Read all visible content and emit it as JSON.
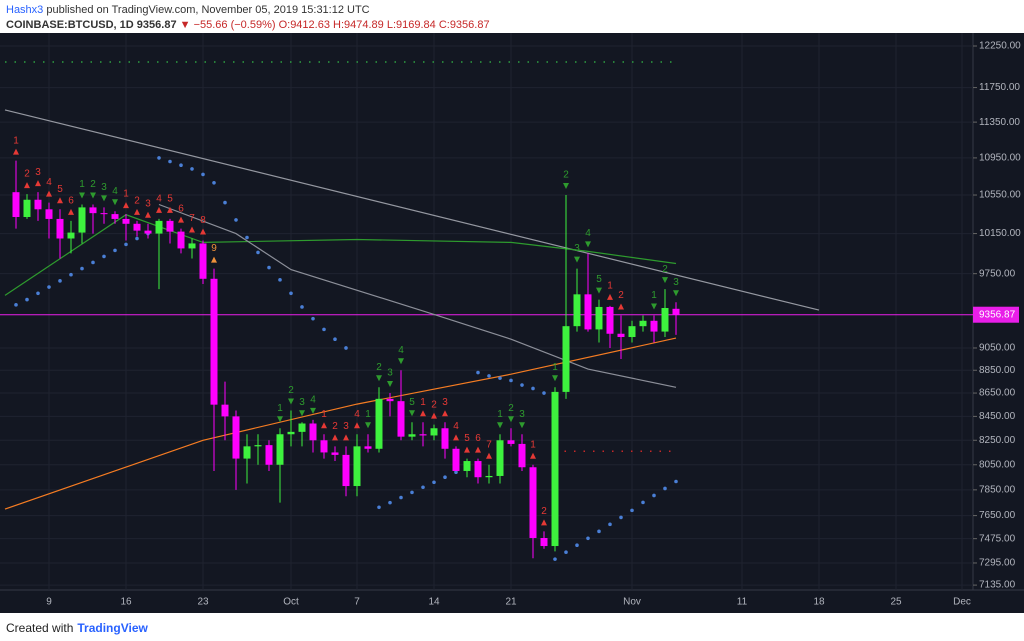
{
  "header": {
    "author": "Hashx3",
    "published": "published on TradingView.com, November 05, 2019 15:31:12 UTC",
    "symbol": "COINBASE:BTCUSD, 1D",
    "last": "9356.87",
    "change": "▼ −55.66 (−0.59%)",
    "ohlc": "O:9412.63 H:9474.89 L:9169.84 C:9356.87"
  },
  "chart_data": {
    "type": "candlestick",
    "log_scale": true,
    "grid": true,
    "up_color": "#3ef23e",
    "down_color": "#ff00ff",
    "x": [
      "2019-09-06",
      "2019-09-07",
      "2019-09-08",
      "2019-09-09",
      "2019-09-10",
      "2019-09-11",
      "2019-09-12",
      "2019-09-13",
      "2019-09-14",
      "2019-09-15",
      "2019-09-16",
      "2019-09-17",
      "2019-09-18",
      "2019-09-19",
      "2019-09-20",
      "2019-09-21",
      "2019-09-22",
      "2019-09-23",
      "2019-09-24",
      "2019-09-25",
      "2019-09-26",
      "2019-09-27",
      "2019-09-28",
      "2019-09-29",
      "2019-09-30",
      "2019-10-01",
      "2019-10-02",
      "2019-10-03",
      "2019-10-04",
      "2019-10-05",
      "2019-10-06",
      "2019-10-07",
      "2019-10-08",
      "2019-10-09",
      "2019-10-10",
      "2019-10-11",
      "2019-10-12",
      "2019-10-13",
      "2019-10-14",
      "2019-10-15",
      "2019-10-16",
      "2019-10-17",
      "2019-10-18",
      "2019-10-19",
      "2019-10-20",
      "2019-10-21",
      "2019-10-22",
      "2019-10-23",
      "2019-10-24",
      "2019-10-25",
      "2019-10-26",
      "2019-10-27",
      "2019-10-28",
      "2019-10-29",
      "2019-10-30",
      "2019-10-31",
      "2019-11-01",
      "2019-11-02",
      "2019-11-03",
      "2019-11-04",
      "2019-11-05"
    ],
    "open": [
      10580,
      10320,
      10500,
      10400,
      10300,
      10100,
      10160,
      10420,
      10360,
      10350,
      10300,
      10250,
      10180,
      10150,
      10280,
      10170,
      10000,
      10050,
      9700,
      8550,
      8450,
      8100,
      8200,
      8210,
      8050,
      8300,
      8320,
      8390,
      8250,
      8150,
      8130,
      7880,
      8200,
      8180,
      8600,
      8580,
      8280,
      8300,
      8290,
      8350,
      8180,
      8000,
      8080,
      7950,
      7960,
      8250,
      8220,
      8030,
      7480,
      7420,
      8660,
      9250,
      9550,
      9220,
      9430,
      9180,
      9150,
      9250,
      9300,
      9200,
      9412.63
    ],
    "high": [
      10920,
      10560,
      10580,
      10470,
      10400,
      10280,
      10450,
      10450,
      10420,
      10380,
      10350,
      10280,
      10250,
      10300,
      10300,
      10200,
      10100,
      10080,
      9800,
      8750,
      8500,
      8300,
      8300,
      8250,
      8350,
      8500,
      8400,
      8420,
      8300,
      8200,
      8200,
      8300,
      8300,
      8700,
      8650,
      8850,
      8400,
      8400,
      8380,
      8400,
      8200,
      8100,
      8100,
      8050,
      8300,
      8350,
      8300,
      8050,
      7530,
      8700,
      10550,
      9800,
      9950,
      9500,
      9440,
      9350,
      9300,
      9350,
      9350,
      9600,
      9474.89
    ],
    "low": [
      10200,
      10300,
      10280,
      10100,
      9900,
      9950,
      10050,
      10150,
      10250,
      10250,
      10080,
      10120,
      10100,
      9600,
      10050,
      9950,
      9900,
      9650,
      8000,
      8250,
      7850,
      7900,
      8050,
      8000,
      7750,
      8200,
      8200,
      8150,
      8100,
      8080,
      7800,
      7800,
      8150,
      8150,
      8450,
      8250,
      8250,
      8200,
      8250,
      8100,
      8000,
      7950,
      7900,
      7900,
      7900,
      8200,
      8000,
      7330,
      7400,
      7380,
      8600,
      9200,
      9200,
      9100,
      9050,
      8950,
      9100,
      9200,
      9100,
      9150,
      9169.84
    ],
    "close": [
      10320,
      10500,
      10400,
      10300,
      10100,
      10160,
      10420,
      10360,
      10350,
      10300,
      10250,
      10180,
      10150,
      10280,
      10170,
      10000,
      10050,
      9700,
      8550,
      8450,
      8100,
      8200,
      8210,
      8050,
      8300,
      8320,
      8390,
      8250,
      8150,
      8130,
      7880,
      8200,
      8180,
      8600,
      8580,
      8280,
      8300,
      8290,
      8350,
      8180,
      8000,
      8080,
      7950,
      7960,
      8250,
      8220,
      8030,
      7480,
      7420,
      8660,
      9250,
      9550,
      9220,
      9430,
      9180,
      9150,
      9250,
      9300,
      9200,
      9420,
      9356.87
    ],
    "xlim": [
      "2019-09-05",
      "2019-12-02"
    ],
    "xticks": [
      {
        "value": "2019-09-09",
        "label": "9"
      },
      {
        "value": "2019-09-16",
        "label": "16"
      },
      {
        "value": "2019-09-23",
        "label": "23"
      },
      {
        "value": "2019-10-01",
        "label": "Oct"
      },
      {
        "value": "2019-10-07",
        "label": "7"
      },
      {
        "value": "2019-10-14",
        "label": "14"
      },
      {
        "value": "2019-10-21",
        "label": "21"
      },
      {
        "value": "2019-11-01",
        "label": "Nov"
      },
      {
        "value": "2019-11-11",
        "label": "11"
      },
      {
        "value": "2019-11-18",
        "label": "18"
      },
      {
        "value": "2019-11-25",
        "label": "25"
      },
      {
        "value": "2019-12-01",
        "label": "Dec"
      }
    ],
    "ylim": [
      7100,
      12386
    ],
    "yticks": [
      {
        "value": 12250,
        "label": "12250.00"
      },
      {
        "value": 11750,
        "label": "11750.00"
      },
      {
        "value": 11350,
        "label": "11350.00"
      },
      {
        "value": 10950,
        "label": "10950.00"
      },
      {
        "value": 10550,
        "label": "10550.00"
      },
      {
        "value": 10150,
        "label": "10150.00"
      },
      {
        "value": 9750,
        "label": "9750.00"
      },
      {
        "value": 9050,
        "label": "9050.00"
      },
      {
        "value": 8850,
        "label": "8850.00"
      },
      {
        "value": 8650,
        "label": "8650.00"
      },
      {
        "value": 8450,
        "label": "8450.00"
      },
      {
        "value": 8250,
        "label": "8250.00"
      },
      {
        "value": 8050,
        "label": "8050.00"
      },
      {
        "value": 7850,
        "label": "7850.00"
      },
      {
        "value": 7650,
        "label": "7650.00"
      },
      {
        "value": 7475,
        "label": "7475.00"
      },
      {
        "value": 7295,
        "label": "7295.00"
      },
      {
        "value": 7135,
        "label": "7135.00"
      }
    ],
    "last_price": 9356.87,
    "last_price_label": "9356.87",
    "last_price_color": "#e91ee9",
    "overlays": [
      {
        "style": "line",
        "color": "#9598a1",
        "x": [
          "2019-09-05",
          "2019-11-18"
        ],
        "values": [
          11490,
          9400
        ]
      },
      {
        "style": "line",
        "color": "#2e9b2e",
        "x": [
          "2019-09-05",
          "2019-09-16",
          "2019-09-23",
          "2019-10-07",
          "2019-10-21",
          "2019-10-28",
          "2019-11-05"
        ],
        "values": [
          9540,
          10344,
          10060,
          10090,
          10060,
          9970,
          9850
        ]
      },
      {
        "style": "line",
        "color": "#f57c22",
        "x": [
          "2019-09-05",
          "2019-09-23",
          "2019-10-07",
          "2019-10-21",
          "2019-11-05"
        ],
        "values": [
          7700,
          8250,
          8555,
          8815,
          9140
        ]
      },
      {
        "style": "line",
        "color": "#8c8f99",
        "x": [
          "2019-09-19",
          "2019-09-26",
          "2019-10-01",
          "2019-10-14",
          "2019-10-21",
          "2019-10-28",
          "2019-11-05"
        ],
        "values": [
          10450,
          10150,
          9790,
          9360,
          9130,
          8860,
          8700
        ]
      },
      {
        "style": "dotted",
        "color": "#2ea043",
        "x": [
          "2019-09-05",
          "2019-11-05"
        ],
        "values": [
          12055,
          12055
        ]
      },
      {
        "style": "dotted",
        "color": "#c62828",
        "x": [
          "2019-10-25",
          "2019-11-05"
        ],
        "values": [
          8160,
          8160
        ]
      },
      {
        "style": "dots",
        "color": "#4a7fd6",
        "x": [
          "2019-09-06",
          "2019-09-07",
          "2019-09-08",
          "2019-09-09",
          "2019-09-10",
          "2019-09-11",
          "2019-09-12",
          "2019-09-13",
          "2019-09-14",
          "2019-09-15",
          "2019-09-16",
          "2019-09-17",
          "2019-09-18",
          "2019-09-19",
          "2019-09-20",
          "2019-09-21",
          "2019-09-22",
          "2019-09-23",
          "2019-09-24",
          "2019-09-25",
          "2019-09-26",
          "2019-09-27",
          "2019-09-28",
          "2019-09-29",
          "2019-09-30",
          "2019-10-01",
          "2019-10-02",
          "2019-10-03",
          "2019-10-04",
          "2019-10-05",
          "2019-10-06",
          "2019-10-09",
          "2019-10-10",
          "2019-10-11",
          "2019-10-12",
          "2019-10-13",
          "2019-10-14",
          "2019-10-15",
          "2019-10-16",
          "2019-10-17",
          "2019-10-18",
          "2019-10-19",
          "2019-10-20",
          "2019-10-21",
          "2019-10-22",
          "2019-10-23",
          "2019-10-24",
          "2019-10-25",
          "2019-10-26",
          "2019-10-27",
          "2019-10-28",
          "2019-10-29",
          "2019-10-30",
          "2019-10-31",
          "2019-11-01",
          "2019-11-02",
          "2019-11-03",
          "2019-11-04",
          "2019-11-05"
        ],
        "values": [
          9450,
          9500,
          9560,
          9620,
          9680,
          9740,
          9800,
          9860,
          9920,
          9980,
          10040,
          10100,
          10150,
          10950,
          10910,
          10870,
          10830,
          10770,
          10680,
          10470,
          10290,
          10110,
          9960,
          9810,
          9690,
          9560,
          9430,
          9320,
          9220,
          9130,
          9050,
          7714,
          7750,
          7790,
          7830,
          7870,
          7910,
          7950,
          7990,
          8030,
          8830,
          8800,
          8780,
          8760,
          8720,
          8690,
          8650,
          7323,
          7374,
          7426,
          7478,
          7530,
          7583,
          7636,
          7690,
          7752,
          7806,
          7861,
          7916
        ]
      }
    ],
    "markers": [
      {
        "x": "2019-09-06",
        "label": "1",
        "color": "#e53935",
        "shape": "up"
      },
      {
        "x": "2019-09-07",
        "label": "2",
        "color": "#e53935",
        "shape": "up"
      },
      {
        "x": "2019-09-08",
        "label": "3",
        "color": "#e53935",
        "shape": "up"
      },
      {
        "x": "2019-09-09",
        "label": "4",
        "color": "#e53935",
        "shape": "up"
      },
      {
        "x": "2019-09-10",
        "label": "5",
        "color": "#e53935",
        "shape": "up"
      },
      {
        "x": "2019-09-11",
        "label": "6",
        "color": "#e53935",
        "shape": "up"
      },
      {
        "x": "2019-09-12",
        "label": "1",
        "color": "#2e9b2e",
        "shape": "down"
      },
      {
        "x": "2019-09-13",
        "label": "2",
        "color": "#2e9b2e",
        "shape": "down"
      },
      {
        "x": "2019-09-14",
        "label": "3",
        "color": "#2e9b2e",
        "shape": "down"
      },
      {
        "x": "2019-09-15",
        "label": "4",
        "color": "#2e9b2e",
        "shape": "down"
      },
      {
        "x": "2019-09-16",
        "label": "1",
        "color": "#e53935",
        "shape": "up"
      },
      {
        "x": "2019-09-17",
        "label": "2",
        "color": "#e53935",
        "shape": "up"
      },
      {
        "x": "2019-09-18",
        "label": "3",
        "color": "#e53935",
        "shape": "up"
      },
      {
        "x": "2019-09-19",
        "label": "4",
        "color": "#e53935",
        "shape": "up"
      },
      {
        "x": "2019-09-20",
        "label": "5",
        "color": "#e53935",
        "shape": "up"
      },
      {
        "x": "2019-09-21",
        "label": "6",
        "color": "#e53935",
        "shape": "up"
      },
      {
        "x": "2019-09-22",
        "label": "7",
        "color": "#e53935",
        "shape": "up"
      },
      {
        "x": "2019-09-23",
        "label": "8",
        "color": "#e53935",
        "shape": "up"
      },
      {
        "x": "2019-09-24",
        "label": "9",
        "color": "#f0923a",
        "shape": "up"
      },
      {
        "x": "2019-09-30",
        "label": "1",
        "color": "#2e9b2e",
        "shape": "down"
      },
      {
        "x": "2019-10-01",
        "label": "2",
        "color": "#2e9b2e",
        "shape": "down"
      },
      {
        "x": "2019-10-02",
        "label": "3",
        "color": "#2e9b2e",
        "shape": "down"
      },
      {
        "x": "2019-10-03",
        "label": "4",
        "color": "#2e9b2e",
        "shape": "down"
      },
      {
        "x": "2019-10-04",
        "label": "1",
        "color": "#e53935",
        "shape": "up"
      },
      {
        "x": "2019-10-05",
        "label": "2",
        "color": "#e53935",
        "shape": "up"
      },
      {
        "x": "2019-10-06",
        "label": "3",
        "color": "#e53935",
        "shape": "up"
      },
      {
        "x": "2019-10-07",
        "label": "4",
        "color": "#e53935",
        "shape": "up"
      },
      {
        "x": "2019-10-08",
        "label": "1",
        "color": "#2e9b2e",
        "shape": "down"
      },
      {
        "x": "2019-10-09",
        "label": "2",
        "color": "#2e9b2e",
        "shape": "down"
      },
      {
        "x": "2019-10-10",
        "label": "3",
        "color": "#2e9b2e",
        "shape": "down"
      },
      {
        "x": "2019-10-11",
        "label": "4",
        "color": "#2e9b2e",
        "shape": "down"
      },
      {
        "x": "2019-10-12",
        "label": "5",
        "color": "#2e9b2e",
        "shape": "down"
      },
      {
        "x": "2019-10-13",
        "label": "1",
        "color": "#e53935",
        "shape": "up"
      },
      {
        "x": "2019-10-14",
        "label": "2",
        "color": "#e53935",
        "shape": "up"
      },
      {
        "x": "2019-10-15",
        "label": "3",
        "color": "#e53935",
        "shape": "up"
      },
      {
        "x": "2019-10-16",
        "label": "4",
        "color": "#e53935",
        "shape": "up"
      },
      {
        "x": "2019-10-17",
        "label": "5",
        "color": "#e53935",
        "shape": "up"
      },
      {
        "x": "2019-10-18",
        "label": "6",
        "color": "#e53935",
        "shape": "up"
      },
      {
        "x": "2019-10-19",
        "label": "7",
        "color": "#e53935",
        "shape": "up"
      },
      {
        "x": "2019-10-20",
        "label": "1",
        "color": "#2e9b2e",
        "shape": "down"
      },
      {
        "x": "2019-10-21",
        "label": "2",
        "color": "#2e9b2e",
        "shape": "down"
      },
      {
        "x": "2019-10-22",
        "label": "3",
        "color": "#2e9b2e",
        "shape": "down"
      },
      {
        "x": "2019-10-23",
        "label": "1",
        "color": "#e53935",
        "shape": "up"
      },
      {
        "x": "2019-10-24",
        "label": "2",
        "color": "#e53935",
        "shape": "up"
      },
      {
        "x": "2019-10-25",
        "label": "1",
        "color": "#2e9b2e",
        "shape": "down"
      },
      {
        "x": "2019-10-26",
        "label": "2",
        "color": "#2e9b2e",
        "shape": "down"
      },
      {
        "x": "2019-10-27",
        "label": "3",
        "color": "#2e9b2e",
        "shape": "down"
      },
      {
        "x": "2019-10-28",
        "label": "4",
        "color": "#2e9b2e",
        "shape": "down"
      },
      {
        "x": "2019-10-29",
        "label": "5",
        "color": "#2e9b2e",
        "shape": "down"
      },
      {
        "x": "2019-10-30",
        "label": "1",
        "color": "#e53935",
        "shape": "up"
      },
      {
        "x": "2019-10-31",
        "label": "2",
        "color": "#e53935",
        "shape": "up"
      },
      {
        "x": "2019-11-03",
        "label": "1",
        "color": "#2e9b2e",
        "shape": "down"
      },
      {
        "x": "2019-11-04",
        "label": "2",
        "color": "#2e9b2e",
        "shape": "down"
      },
      {
        "x": "2019-11-05",
        "label": "3",
        "color": "#2e9b2e",
        "shape": "down"
      }
    ]
  },
  "footer": {
    "prefix": "Created with",
    "brand": "TradingView"
  }
}
